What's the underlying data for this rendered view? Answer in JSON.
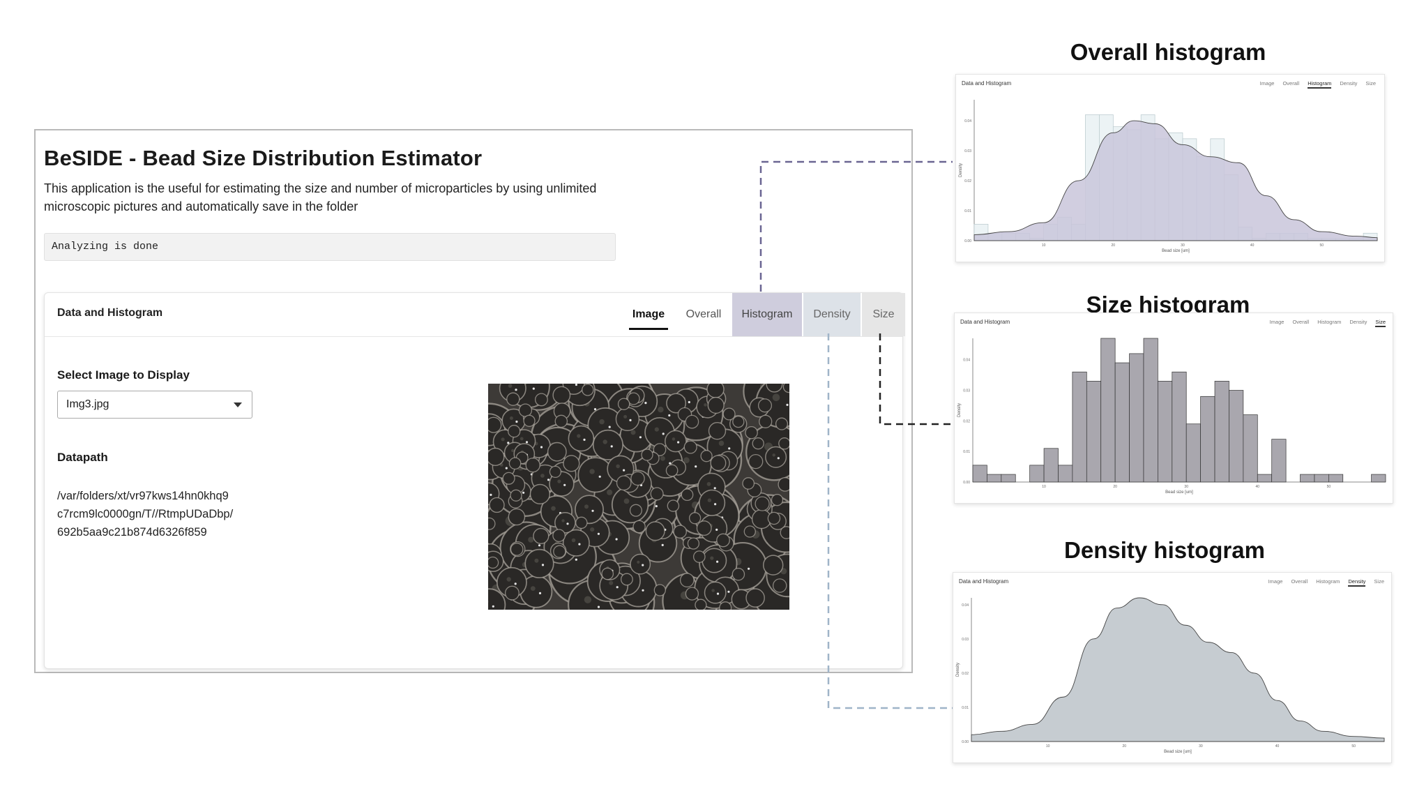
{
  "app": {
    "title": "BeSIDE - Bead Size Distribution Estimator",
    "description": "This application is the useful for estimating the size and number of microparticles by using unlimited microscopic pictures and automatically save in the folder",
    "status": "Analyzing is done"
  },
  "card": {
    "title": "Data and Histogram",
    "tabs": [
      "Image",
      "Overall",
      "Histogram",
      "Density",
      "Size"
    ],
    "active_tab": "Image"
  },
  "select": {
    "label": "Select Image to Display",
    "value": "Img3.jpg"
  },
  "datapath": {
    "label": "Datapath",
    "lines": [
      "/var/folders/xt/vr97kws14hn0khq9",
      "c7rcm9lc0000gn/T//RtmpUDaDbp/",
      "692b5aa9c21b874d6326f859"
    ]
  },
  "panels": {
    "overall": {
      "heading": "Overall histogram",
      "active_tab": "Histogram",
      "fill": "#c9c6da"
    },
    "size": {
      "heading": "Size histogram",
      "active_tab": "Size",
      "fill": "#a9a7ae"
    },
    "density": {
      "heading": "Density histogram",
      "active_tab": "Density",
      "fill": "#c6ccd1"
    }
  },
  "chart_data": [
    {
      "type": "bar",
      "name": "Overall histogram",
      "xlabel": "Bead size [um]",
      "ylabel": "Density",
      "x_ticks": [
        10,
        20,
        30,
        40,
        50
      ],
      "y_ticks": [
        0.0,
        0.01,
        0.02,
        0.03,
        0.04
      ],
      "xlim": [
        0,
        58
      ],
      "ylim": [
        0,
        0.047
      ],
      "bins_start": [
        0,
        2,
        4,
        6,
        8,
        10,
        12,
        14,
        16,
        18,
        20,
        22,
        24,
        26,
        28,
        30,
        32,
        34,
        36,
        38,
        40,
        42,
        44,
        46,
        48,
        50,
        52,
        54,
        56
      ],
      "values": [
        0.0055,
        0.0025,
        0.0025,
        0.0025,
        0.0008,
        0.0055,
        0.0078,
        0.0055,
        0.042,
        0.042,
        0.038,
        0.037,
        0.042,
        0.034,
        0.036,
        0.034,
        0.028,
        0.034,
        0.022,
        0.0045,
        0.0008,
        0.0025,
        0.0025,
        0.0025,
        0.0008,
        0.0008,
        0.0008,
        0.0008,
        0.0025
      ],
      "density_curve": {
        "x": [
          0,
          5,
          10,
          15,
          20,
          23,
          26,
          30,
          34,
          38,
          42,
          46,
          50,
          55,
          58
        ],
        "y": [
          0.002,
          0.003,
          0.006,
          0.02,
          0.036,
          0.04,
          0.039,
          0.032,
          0.028,
          0.026,
          0.015,
          0.007,
          0.003,
          0.0015,
          0.001
        ]
      }
    },
    {
      "type": "bar",
      "name": "Size histogram",
      "xlabel": "Bead size [um]",
      "ylabel": "Density",
      "x_ticks": [
        10,
        20,
        30,
        40,
        50
      ],
      "y_ticks": [
        0.0,
        0.01,
        0.02,
        0.03,
        0.04
      ],
      "xlim": [
        0,
        58
      ],
      "ylim": [
        0,
        0.047
      ],
      "bins_start": [
        0,
        2,
        4,
        6,
        8,
        10,
        12,
        14,
        16,
        18,
        20,
        22,
        24,
        26,
        28,
        30,
        32,
        34,
        36,
        38,
        40,
        42,
        44,
        46,
        48,
        50,
        52,
        54,
        56
      ],
      "values": [
        0.0055,
        0.0025,
        0.0025,
        0.0,
        0.0055,
        0.011,
        0.0055,
        0.036,
        0.033,
        0.047,
        0.039,
        0.042,
        0.047,
        0.033,
        0.036,
        0.019,
        0.028,
        0.033,
        0.03,
        0.022,
        0.0025,
        0.014,
        0.0,
        0.0025,
        0.0025,
        0.0025,
        0.0,
        0.0,
        0.0025
      ]
    },
    {
      "type": "area",
      "name": "Density histogram",
      "xlabel": "Bead size [um]",
      "ylabel": "Density",
      "x_ticks": [
        10,
        20,
        30,
        40,
        50
      ],
      "y_ticks": [
        0.0,
        0.01,
        0.02,
        0.03,
        0.04
      ],
      "xlim": [
        0,
        54
      ],
      "ylim": [
        0,
        0.042
      ],
      "x": [
        0,
        4,
        8,
        12,
        16,
        19,
        22,
        25,
        28,
        31,
        34,
        37,
        40,
        43,
        46,
        50,
        54
      ],
      "y": [
        0.002,
        0.003,
        0.005,
        0.013,
        0.03,
        0.039,
        0.042,
        0.04,
        0.034,
        0.029,
        0.026,
        0.02,
        0.012,
        0.006,
        0.003,
        0.0015,
        0.001
      ]
    }
  ]
}
